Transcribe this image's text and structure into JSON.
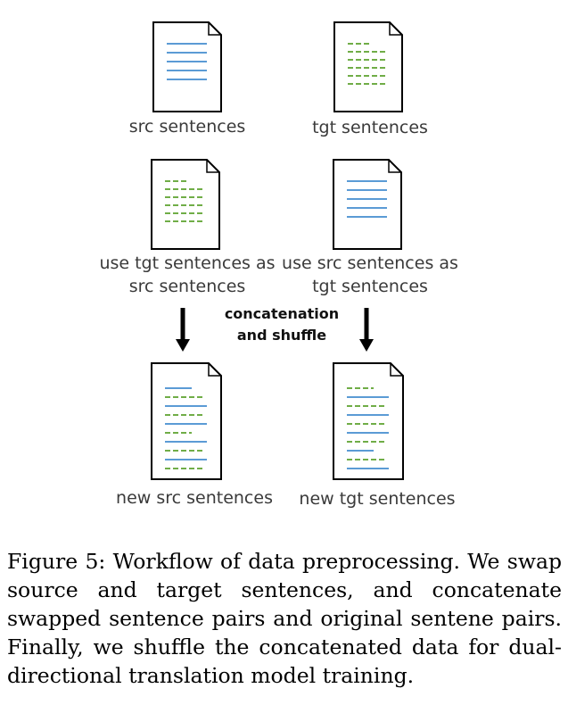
{
  "colors": {
    "blue_line": "#5b9bd5",
    "green_line": "#70ad47",
    "doc_stroke": "#000000",
    "arrow": "#000000"
  },
  "documents": [
    {
      "id": "src",
      "label": "src sentences",
      "pattern": "blue"
    },
    {
      "id": "tgt",
      "label": "tgt sentences",
      "pattern": "green"
    },
    {
      "id": "swap-src",
      "label_lines": [
        "use tgt sentences as",
        "src sentences"
      ],
      "pattern": "green"
    },
    {
      "id": "swap-tgt",
      "label_lines": [
        "use src sentences as",
        "tgt sentences"
      ],
      "pattern": "blue"
    },
    {
      "id": "new-src",
      "label": "new src sentences",
      "pattern": "mixed-blue-first"
    },
    {
      "id": "new-tgt",
      "label": "new tgt sentences",
      "pattern": "mixed-green-first"
    }
  ],
  "step_label_lines": [
    "concatenation",
    "and shuffle"
  ],
  "caption": "Figure 5: Workflow of data preprocessing. We swap source and target sentences, and concatenate swapped sentence pairs and original sentene pairs. Finally, we shuffle the concatenated data for dual-directional translation model training."
}
